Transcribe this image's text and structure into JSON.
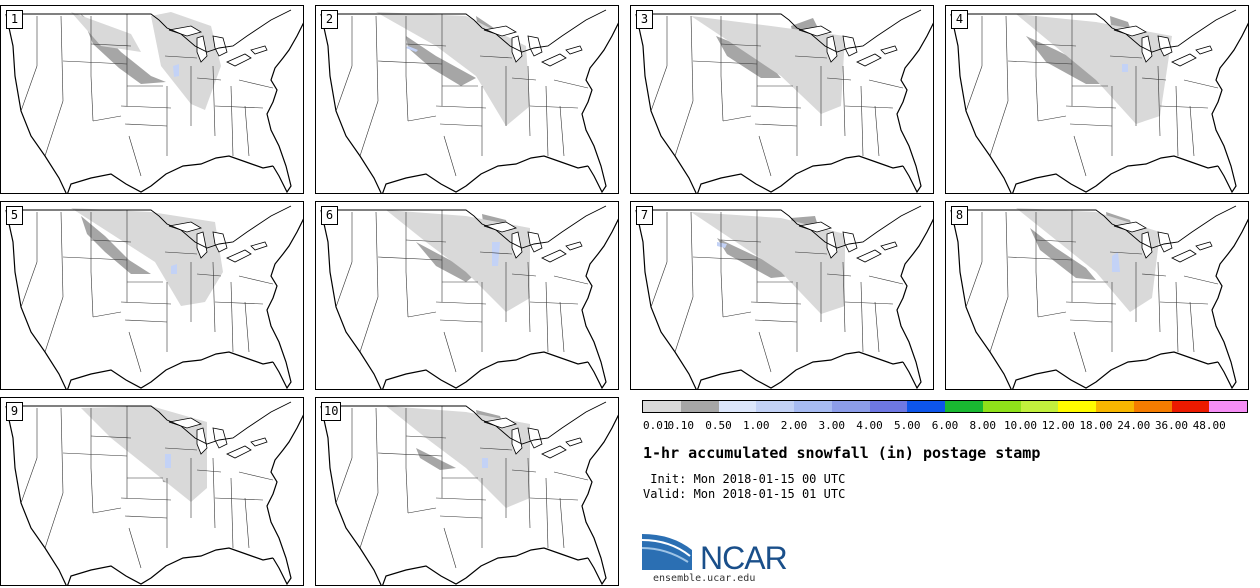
{
  "panels": [
    {
      "label": "1",
      "variant": 0
    },
    {
      "label": "2",
      "variant": 1
    },
    {
      "label": "3",
      "variant": 2
    },
    {
      "label": "4",
      "variant": 3
    },
    {
      "label": "5",
      "variant": 4
    },
    {
      "label": "6",
      "variant": 5
    },
    {
      "label": "7",
      "variant": 6
    },
    {
      "label": "8",
      "variant": 7
    },
    {
      "label": "9",
      "variant": 8
    },
    {
      "label": "10",
      "variant": 9
    }
  ],
  "colorbar": {
    "colors": [
      "#d9d9d9",
      "#a6a6a6",
      "#dce6fb",
      "#c3d2f6",
      "#a7bbf2",
      "#8c9de9",
      "#6e78e3",
      "#0d55ea",
      "#19b831",
      "#8fe11a",
      "#c2f03d",
      "#fffc00",
      "#f8b700",
      "#f57c00",
      "#ec1a00",
      "#f58ef5"
    ],
    "labels": [
      "0.01",
      "0.10",
      "0.50",
      "1.00",
      "2.00",
      "3.00",
      "4.00",
      "5.00",
      "6.00",
      "8.00",
      "10.00",
      "12.00",
      "18.00",
      "24.00",
      "36.00",
      "48.00"
    ]
  },
  "title": "1-hr accumulated snowfall (in) postage stamp",
  "init_line": " Init: Mon 2018-01-15 00 UTC",
  "valid_line": "Valid: Mon 2018-01-15 01 UTC",
  "logo_text": "NCAR",
  "website": "ensemble.ucar.edu"
}
